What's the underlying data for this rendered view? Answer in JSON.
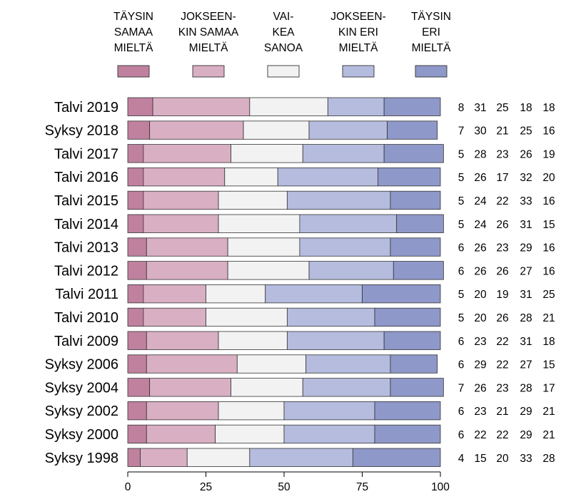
{
  "chart_data": {
    "type": "bar",
    "orientation": "horizontal",
    "stacked": true,
    "xlim": [
      0,
      100
    ],
    "x_ticks": [
      0,
      25,
      50,
      75,
      100
    ],
    "legend_position": "top",
    "grid": false,
    "categories": [
      "Talvi 2019",
      "Syksy 2018",
      "Talvi 2017",
      "Talvi 2016",
      "Talvi 2015",
      "Talvi 2014",
      "Talvi 2013",
      "Talvi 2012",
      "Talvi 2011",
      "Talvi 2010",
      "Talvi 2009",
      "Syksy 2006",
      "Syksy 2004",
      "Syksy 2002",
      "Syksy 2000",
      "Syksy 1998"
    ],
    "series": [
      {
        "name": [
          "TÄYSIN",
          "SAMAA",
          "MIELTÄ"
        ],
        "color": "#c0819f",
        "values": [
          8,
          7,
          5,
          5,
          5,
          5,
          6,
          6,
          5,
          5,
          6,
          6,
          7,
          6,
          6,
          4
        ]
      },
      {
        "name": [
          "JOKSEEN-",
          "KIN SAMAA",
          "MIELTÄ"
        ],
        "color": "#d9afc3",
        "values": [
          31,
          30,
          28,
          26,
          24,
          24,
          26,
          26,
          20,
          20,
          23,
          29,
          26,
          23,
          22,
          15
        ]
      },
      {
        "name": [
          "VAI-",
          "KEA",
          "SANOA"
        ],
        "color": "#f2f2f2",
        "values": [
          25,
          21,
          23,
          17,
          22,
          26,
          23,
          26,
          19,
          26,
          22,
          22,
          23,
          21,
          22,
          20
        ]
      },
      {
        "name": [
          "JOKSEEN-",
          "KIN ERI",
          "MIELTÄ"
        ],
        "color": "#b5bcde",
        "values": [
          18,
          25,
          26,
          32,
          33,
          31,
          29,
          27,
          31,
          28,
          31,
          27,
          28,
          29,
          29,
          33
        ]
      },
      {
        "name": [
          "TÄYSIN",
          "ERI",
          "MIELTÄ"
        ],
        "color": "#8e98c9",
        "values": [
          18,
          16,
          19,
          20,
          16,
          15,
          16,
          16,
          25,
          21,
          18,
          15,
          17,
          21,
          21,
          28
        ]
      }
    ]
  }
}
